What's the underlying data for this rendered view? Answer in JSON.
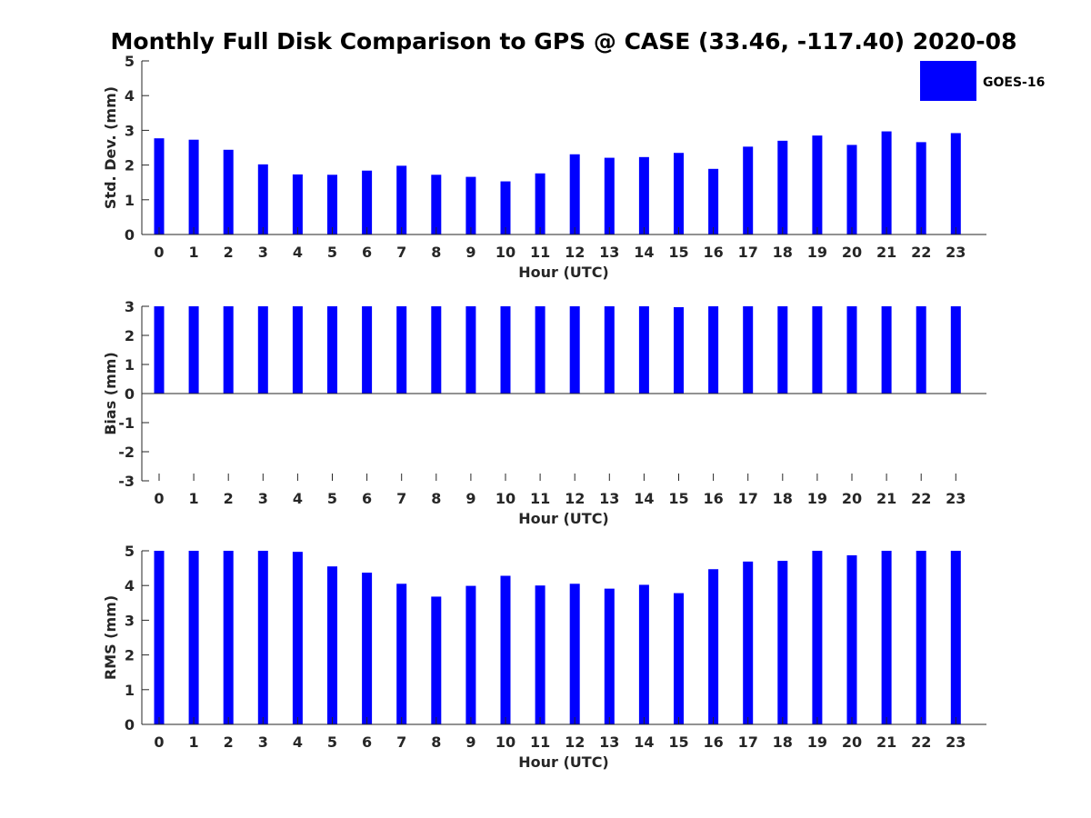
{
  "chart_data": {
    "title": "Monthly Full Disk Comparison to GPS @ CASE (33.46, -117.40) 2020-08",
    "legend": {
      "entries": [
        "GOES-16"
      ],
      "placement": "top-right"
    },
    "colors": {
      "bar": "#0000ff",
      "axis": "#262626"
    },
    "panels": [
      {
        "type": "bar",
        "categories": [
          "0",
          "1",
          "2",
          "3",
          "4",
          "5",
          "6",
          "7",
          "8",
          "9",
          "10",
          "11",
          "12",
          "13",
          "14",
          "15",
          "16",
          "17",
          "18",
          "19",
          "20",
          "21",
          "22",
          "23"
        ],
        "series": [
          {
            "name": "GOES-16",
            "values": [
              2.77,
              2.73,
              2.44,
              2.02,
              1.73,
              1.72,
              1.84,
              1.98,
              1.72,
              1.66,
              1.53,
              1.76,
              2.31,
              2.21,
              2.23,
              2.35,
              1.89,
              2.53,
              2.7,
              2.85,
              2.58,
              2.97,
              2.66,
              2.92
            ]
          }
        ],
        "xlabel": "Hour (UTC)",
        "ylabel": "Std. Dev. (mm)",
        "ylim": [
          0,
          5
        ],
        "yticks": [
          "0",
          "1",
          "2",
          "3",
          "4",
          "5"
        ]
      },
      {
        "type": "bar",
        "categories": [
          "0",
          "1",
          "2",
          "3",
          "4",
          "5",
          "6",
          "7",
          "8",
          "9",
          "10",
          "11",
          "12",
          "13",
          "14",
          "15",
          "16",
          "17",
          "18",
          "19",
          "20",
          "21",
          "22",
          "23"
        ],
        "series": [
          {
            "name": "GOES-16",
            "values": [
              3.0,
              3.0,
              3.0,
              3.0,
              3.0,
              3.0,
              3.0,
              3.0,
              3.0,
              3.0,
              3.0,
              3.0,
              3.0,
              3.0,
              3.0,
              2.97,
              3.0,
              3.0,
              3.0,
              3.0,
              3.0,
              3.0,
              3.0,
              3.0
            ]
          }
        ],
        "xlabel": "Hour (UTC)",
        "ylabel": "Bias (mm)",
        "ylim": [
          -3,
          3
        ],
        "yticks": [
          "-3",
          "-2",
          "-1",
          "0",
          "1",
          "2",
          "3"
        ]
      },
      {
        "type": "bar",
        "categories": [
          "0",
          "1",
          "2",
          "3",
          "4",
          "5",
          "6",
          "7",
          "8",
          "9",
          "10",
          "11",
          "12",
          "13",
          "14",
          "15",
          "16",
          "17",
          "18",
          "19",
          "20",
          "21",
          "22",
          "23"
        ],
        "series": [
          {
            "name": "GOES-16",
            "values": [
              5.0,
              5.0,
              5.0,
              5.0,
              4.97,
              4.55,
              4.37,
              4.05,
              3.68,
              3.99,
              4.28,
              4.0,
              4.05,
              3.91,
              4.02,
              3.78,
              4.47,
              4.69,
              4.71,
              5.0,
              4.87,
              5.0,
              5.0,
              5.0
            ]
          }
        ],
        "xlabel": "Hour (UTC)",
        "ylabel": "RMS (mm)",
        "ylim": [
          0,
          5
        ],
        "yticks": [
          "0",
          "1",
          "2",
          "3",
          "4",
          "5"
        ]
      }
    ]
  }
}
